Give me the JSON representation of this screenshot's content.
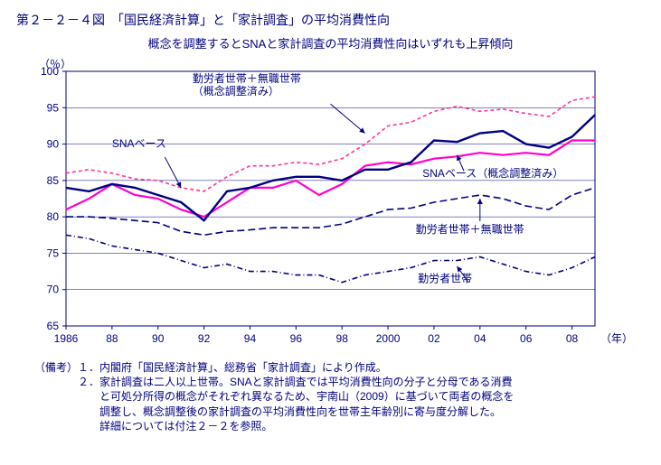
{
  "title": "第２－２－４図　「国民経済計算」と「家計調査」の平均消費性向",
  "subtitle": "概念を調整するとSNAと家計調査の平均消費性向はいずれも上昇傾向",
  "y_unit": "（％）",
  "x_unit": "（年）",
  "chart": {
    "type": "line",
    "background_color": "#ffffff",
    "axis_color": "#000080",
    "grid_color": "#000080",
    "text_color": "#000080",
    "line_width": 1.8,
    "ylim": [
      65,
      100
    ],
    "ytick_step": 5,
    "x_start": 1986,
    "x_end": 2009,
    "x_ticks": [
      1986,
      1988,
      1990,
      1992,
      1994,
      1996,
      1998,
      2000,
      2002,
      2004,
      2006,
      2008
    ],
    "x_tick_labels": [
      "1986",
      "88",
      "90",
      "92",
      "94",
      "96",
      "98",
      "2000",
      "02",
      "04",
      "06",
      "08"
    ],
    "series": [
      {
        "name": "勤労者世帯＋無職世帯\n（概念調整済み）",
        "label_anchor": [
          1991.5,
          98.5
        ],
        "arrow_from": [
          1997.5,
          95.5
        ],
        "arrow_to": [
          1999.0,
          91.5
        ],
        "color": "#ff3399",
        "dash": "4 3",
        "width": 1.6,
        "data": [
          86.0,
          86.5,
          86.0,
          85.2,
          85.0,
          84.0,
          83.5,
          85.5,
          87.0,
          87.0,
          87.5,
          87.2,
          88.0,
          90.0,
          92.5,
          93.0,
          94.5,
          95.2,
          94.5,
          94.8,
          94.2,
          93.8,
          96.0,
          96.5
        ]
      },
      {
        "name": "SNAベース（概念調整済み）",
        "label_anchor": [
          2001.5,
          85.5
        ],
        "arrow_from": [
          2003.3,
          86.3
        ],
        "arrow_to": [
          2003.0,
          88.5
        ],
        "color": "#ff00cc",
        "dash": "",
        "width": 2.2,
        "data": [
          81.0,
          82.5,
          84.5,
          83.0,
          82.5,
          81.0,
          80.0,
          82.0,
          84.0,
          84.0,
          85.0,
          83.0,
          84.5,
          87.0,
          87.5,
          87.2,
          88.0,
          88.3,
          88.8,
          88.5,
          88.8,
          88.5,
          90.5,
          90.5
        ]
      },
      {
        "name": "SNAベース",
        "label_anchor": [
          1988.0,
          89.6
        ],
        "arrow_from": [
          1990.3,
          88.2
        ],
        "arrow_to": [
          1991.0,
          84.0
        ],
        "color": "#000080",
        "dash": "",
        "width": 2.4,
        "data": [
          84.0,
          83.5,
          84.5,
          84.0,
          83.0,
          82.0,
          79.5,
          83.5,
          84.0,
          85.0,
          85.5,
          85.5,
          85.0,
          86.5,
          86.5,
          87.5,
          90.5,
          90.3,
          91.5,
          91.8,
          90.0,
          89.5,
          91.0,
          94.0
        ]
      },
      {
        "name": "勤労者世帯＋無職世帯",
        "label_anchor": [
          2001.2,
          77.8
        ],
        "arrow_from": [
          2004.0,
          79.4
        ],
        "arrow_to": [
          2004.0,
          82.5
        ],
        "color": "#000080",
        "dash": "8 4",
        "width": 1.6,
        "data": [
          80.0,
          80.0,
          79.8,
          79.5,
          79.2,
          78.0,
          77.5,
          78.0,
          78.2,
          78.5,
          78.5,
          78.5,
          79.0,
          80.0,
          81.0,
          81.2,
          82.0,
          82.5,
          83.0,
          82.5,
          81.5,
          81.0,
          83.0,
          84.0
        ]
      },
      {
        "name": "勤労者世帯",
        "label_anchor": [
          2001.3,
          71.0
        ],
        "arrow_from": [
          2003.5,
          71.0
        ],
        "arrow_to": [
          2003.0,
          73.2
        ],
        "color": "#000080",
        "dash": "6 3 1 3",
        "width": 1.6,
        "data": [
          77.5,
          77.0,
          76.0,
          75.5,
          75.0,
          74.0,
          73.0,
          73.5,
          72.5,
          72.5,
          72.0,
          72.0,
          71.0,
          72.0,
          72.5,
          73.0,
          74.0,
          74.0,
          74.5,
          73.5,
          72.5,
          72.0,
          73.0,
          74.5
        ]
      }
    ]
  },
  "notes_label": "（備考）",
  "notes": [
    "１．内閣府「国民経済計算」、総務省「家計調査」により作成。",
    "２．家計調査は二人以上世帯。SNAと家計調査では平均消費性向の分子と分母である消費",
    "　　と可処分所得の概念がそれぞれ異なるため、宇南山（2009）に基づいて両者の概念を",
    "　　調整し、概念調整後の家計調査の平均消費性向を世帯主年齢別に寄与度分解した。",
    "　　詳細については付注２－２を参照。"
  ]
}
